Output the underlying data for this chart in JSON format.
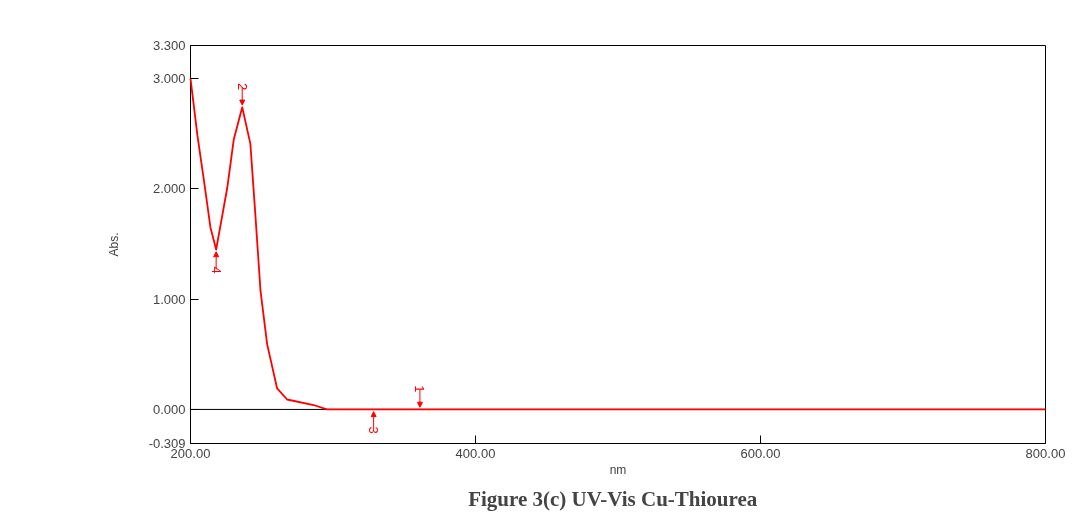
{
  "chart_data": {
    "type": "line",
    "title": "Figure 3(c)  UV-Vis  Cu-Thiourea",
    "xlabel": "nm",
    "ylabel": "Abs.",
    "series": [
      {
        "color": "#ff0000",
        "x": [
          200,
          204.9,
          209.4,
          214,
          218,
          225.8,
          230.4,
          236.3,
          242,
          245.6,
          249.1,
          253.8,
          260.8,
          267.8,
          286.4,
          295.7,
          330,
          400,
          600,
          800
        ],
        "values": [
          3.0,
          2.48,
          2.08,
          1.65,
          1.45,
          2.01,
          2.45,
          2.74,
          2.41,
          1.75,
          1.08,
          0.59,
          0.19,
          0.09,
          0.04,
          0.0,
          0.0,
          0.0,
          0.0,
          0.0
        ]
      }
    ],
    "xlim": [
      200,
      800
    ],
    "xticks": [
      {
        "value": 200,
        "label": "200.00"
      },
      {
        "value": 400,
        "label": "400.00"
      },
      {
        "value": 600,
        "label": "600.00"
      },
      {
        "value": 800,
        "label": "800.00"
      }
    ],
    "ylim": [
      -0.309,
      3.3
    ],
    "yticks": [
      {
        "value": -0.309,
        "label": "-0.309"
      },
      {
        "value": 0,
        "label": "0.000"
      },
      {
        "value": 1,
        "label": "1.000"
      },
      {
        "value": 2,
        "label": "2.000"
      },
      {
        "value": 3,
        "label": "3.000"
      },
      {
        "value": 3.3,
        "label": "3.300"
      }
    ],
    "ref_lines": [
      {
        "axis": "y",
        "value": 0,
        "label": null,
        "color": "#000000"
      }
    ],
    "annotations": [
      {
        "text": "1",
        "x": 361,
        "y": 0
      },
      {
        "text": "2",
        "x": 236.3,
        "y": 2.74
      },
      {
        "text": "3",
        "x": 328.5,
        "y": 0
      },
      {
        "text": "4",
        "x": 218,
        "y": 1.45
      }
    ],
    "grid": false
  }
}
